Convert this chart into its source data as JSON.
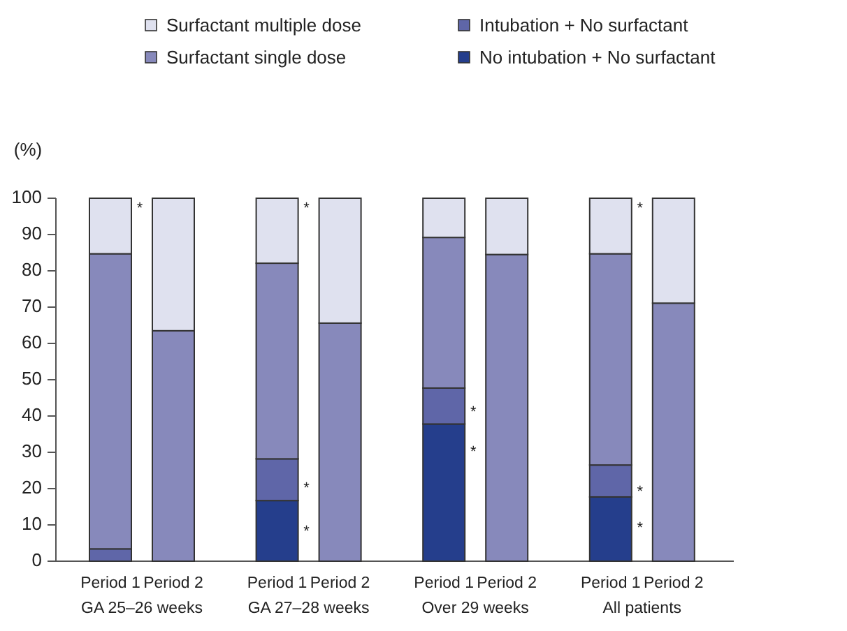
{
  "chart_data": {
    "type": "bar",
    "stacked": true,
    "ylabel": "(%)",
    "categories": [
      "Period 1",
      "Period 2",
      "Period 1",
      "Period 2",
      "Period 1",
      "Period 2",
      "Period 1",
      "Period 2"
    ],
    "series": [
      {
        "name": "No intubation + No surfactant",
        "color": "#253e8c",
        "values": [
          0,
          0,
          16.7,
          0,
          37.8,
          0,
          17.7,
          0
        ]
      },
      {
        "name": "Intubation + No surfactant",
        "color": "#5f66a8",
        "values": [
          3.4,
          0,
          11.5,
          0,
          9.9,
          0,
          8.8,
          0
        ]
      },
      {
        "name": "Surfactant single dose",
        "color": "#8789bb",
        "values": [
          81.3,
          63.5,
          53.9,
          65.6,
          41.5,
          84.5,
          58.2,
          71.1
        ]
      },
      {
        "name": "Surfactant multiple dose",
        "color": "#dfe1ef",
        "values": [
          15.3,
          36.5,
          17.9,
          34.4,
          10.8,
          15.5,
          15.3,
          28.9
        ]
      }
    ],
    "ylim": [
      0,
      100
    ],
    "yticks": [
      0,
      10,
      20,
      30,
      40,
      50,
      60,
      70,
      80,
      90,
      100
    ],
    "legend": "top",
    "annotations": [
      "GA 25–26 weeks",
      "GA 27–28 weeks",
      "Over 29 weeks",
      "All patients",
      "*",
      "*",
      "*",
      "*",
      "*",
      "*",
      "*",
      "*",
      "*"
    ]
  }
}
